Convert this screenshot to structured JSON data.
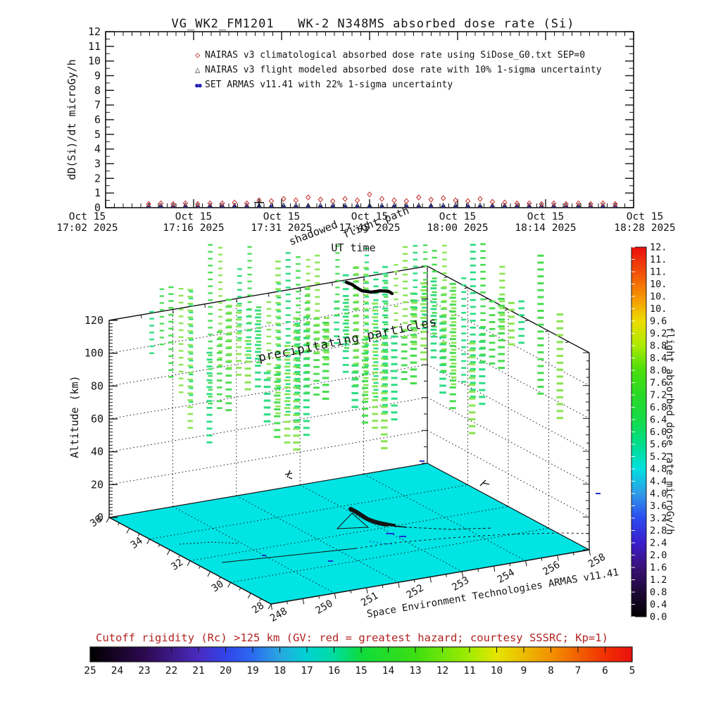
{
  "top_chart": {
    "title": "VG_WK2_FM1201   WK-2 N348MS absorbed dose rate (Si)",
    "ylabel": "dD(Si)/dt microGy/h",
    "xlabel": "UT time",
    "yticks": [
      "0",
      "1",
      "2",
      "3",
      "4",
      "5",
      "6",
      "7",
      "8",
      "9",
      "10",
      "11",
      "12"
    ],
    "xticks": [
      {
        "line1": "Oct 15",
        "line2": "17:02 2025"
      },
      {
        "line1": "Oct 15",
        "line2": "17:16 2025"
      },
      {
        "line1": "Oct 15",
        "line2": "17:31 2025"
      },
      {
        "line1": "Oct 15",
        "line2": "17:45 2025"
      },
      {
        "line1": "Oct 15",
        "line2": "18:00 2025"
      },
      {
        "line1": "Oct 15",
        "line2": "18:14 2025"
      },
      {
        "line1": "Oct 15",
        "line2": "18:28 2025"
      }
    ],
    "legend": [
      {
        "marker": "open-diamond",
        "color": "#C22828",
        "label": "NAIRAS v3 climatological absorbed dose rate using SiDose_G0.txt SEP=0"
      },
      {
        "marker": "open-triangle",
        "color": "#303030",
        "label": "NAIRAS v3 flight modeled absorbed dose rate with 10% 1-sigma uncertainty"
      },
      {
        "marker": "filled-circles",
        "color": "#2222BB",
        "label": "SET ARMAS v11.41 with 22% 1-sigma uncertainty"
      }
    ]
  },
  "scene": {
    "zlabel": "Altitude (km)",
    "z_ticks": [
      "0",
      "20",
      "40",
      "60",
      "80",
      "100",
      "120"
    ],
    "lat_ticks": [
      "36",
      "34",
      "32",
      "30",
      "28"
    ],
    "lon_ticks": [
      "248",
      "250",
      "251",
      "252",
      "253",
      "254",
      "256",
      "258"
    ],
    "floor_color": "#00E4E4",
    "particle_color_palette": [
      "#8CE455",
      "#49DC52",
      "#2EDC85"
    ],
    "flight_path_color": "#000000",
    "annotations": {
      "precipitating": "precipitating particles",
      "flight_path": "flight path",
      "shadowed": "shadowed"
    },
    "credit": "Space Environment Technologies ARMAS v11.41",
    "colorbar": {
      "title": "flight absorbed dose rate microGy/h",
      "min": 0.0,
      "max": 12.0,
      "step": 0.4,
      "tick_labels": [
        "12.",
        "11.",
        "11.",
        "10.",
        "10.",
        "10.",
        "9.6",
        "9.2",
        "8.8",
        "8.4",
        "8.0",
        "7.6",
        "7.2",
        "6.8",
        "6.4",
        "6.0",
        "5.6",
        "5.2",
        "4.8",
        "4.4",
        "4.0",
        "3.6",
        "3.2",
        "2.8",
        "2.4",
        "2.0",
        "1.6",
        "1.2",
        "0.8",
        "0.4",
        "0.0"
      ],
      "gradient": [
        {
          "v": 0.0,
          "c": "#000000"
        },
        {
          "v": 0.8,
          "c": "#1D0836"
        },
        {
          "v": 1.6,
          "c": "#3A1178"
        },
        {
          "v": 2.4,
          "c": "#3A1ECC"
        },
        {
          "v": 3.2,
          "c": "#2B4BF0"
        },
        {
          "v": 4.0,
          "c": "#2E9BE8"
        },
        {
          "v": 4.8,
          "c": "#00E0E0"
        },
        {
          "v": 5.6,
          "c": "#00DE8C"
        },
        {
          "v": 6.4,
          "c": "#16DB48"
        },
        {
          "v": 7.2,
          "c": "#2ADA25"
        },
        {
          "v": 8.0,
          "c": "#4ADE0E"
        },
        {
          "v": 8.8,
          "c": "#ABEB00"
        },
        {
          "v": 9.6,
          "c": "#EEDC00"
        },
        {
          "v": 10.4,
          "c": "#F59200"
        },
        {
          "v": 11.2,
          "c": "#F24E0A"
        },
        {
          "v": 12.0,
          "c": "#EA0E0E"
        }
      ]
    }
  },
  "bottom_bar": {
    "title": "Cutoff rigidity (Rc) >125 km (GV: red = greatest hazard; courtesy SSSRC; Kp=1)",
    "title_color": "#B22222",
    "tick_labels": [
      "25",
      "24",
      "23",
      "22",
      "21",
      "20",
      "19",
      "18",
      "17",
      "16",
      "15",
      "14",
      "13",
      "12",
      "11",
      "10",
      "9",
      "8",
      "7",
      "6",
      "5"
    ],
    "gradient": [
      {
        "v": 25,
        "c": "#000000"
      },
      {
        "v": 23,
        "c": "#2E0850"
      },
      {
        "v": 21,
        "c": "#4A2BBF"
      },
      {
        "v": 20,
        "c": "#3144E8"
      },
      {
        "v": 19,
        "c": "#2B6BF0"
      },
      {
        "v": 18,
        "c": "#28A7E0"
      },
      {
        "v": 17,
        "c": "#00D2D2"
      },
      {
        "v": 16,
        "c": "#00DCA0"
      },
      {
        "v": 15,
        "c": "#0FDB3C"
      },
      {
        "v": 13,
        "c": "#3CDE12"
      },
      {
        "v": 11,
        "c": "#A3EC00"
      },
      {
        "v": 10,
        "c": "#E6E600"
      },
      {
        "v": 8,
        "c": "#F29100"
      },
      {
        "v": 6,
        "c": "#F03000"
      },
      {
        "v": 5,
        "c": "#EB1010"
      }
    ]
  },
  "chart_data": [
    {
      "type": "scatter",
      "title": "VG_WK2_FM1201   WK-2 N348MS absorbed dose rate (Si)",
      "xlabel": "UT time",
      "ylabel": "dD(Si)/dt microGy/h",
      "ylim": [
        0,
        12
      ],
      "x_axis_time_labels": [
        "Oct 15 17:02 2025",
        "Oct 15 17:16 2025",
        "Oct 15 17:31 2025",
        "Oct 15 17:45 2025",
        "Oct 15 18:00 2025",
        "Oct 15 18:14 2025",
        "Oct 15 18:28 2025"
      ],
      "x_minutes_after_1700": [
        9,
        11,
        13,
        15,
        17,
        19,
        21,
        23,
        25,
        27,
        29,
        31,
        33,
        35,
        37,
        39,
        41,
        43,
        45,
        47,
        49,
        51,
        53,
        55,
        57,
        59,
        61,
        63,
        65,
        67,
        69,
        71,
        73,
        75,
        77,
        79,
        81,
        83,
        85
      ],
      "series": [
        {
          "name": "NAIRAS v3 climatological absorbed dose rate using SiDose_G0.txt SEP=0",
          "marker": "diamond",
          "color": "#C22828",
          "values": [
            0.25,
            0.3,
            0.25,
            0.3,
            0.25,
            0.3,
            0.3,
            0.35,
            0.3,
            0.5,
            0.45,
            0.6,
            0.5,
            0.7,
            0.55,
            0.45,
            0.6,
            0.5,
            0.9,
            0.6,
            0.5,
            0.45,
            0.7,
            0.55,
            0.65,
            0.5,
            0.45,
            0.6,
            0.4,
            0.35,
            0.3,
            0.3,
            0.25,
            0.3,
            0.25,
            0.3,
            0.25,
            0.3,
            0.25
          ]
        },
        {
          "name": "NAIRAS v3 flight modeled absorbed dose rate with 10% 1-sigma uncertainty",
          "marker": "triangle",
          "color": "#303030",
          "values": [
            0.15,
            0.15,
            0.15,
            0.15,
            0.15,
            0.15,
            0.15,
            0.15,
            0.15,
            0.15,
            0.15,
            0.15,
            0.15,
            0.15,
            0.15,
            0.15,
            0.15,
            0.15,
            0.15,
            0.15,
            0.15,
            0.15,
            0.15,
            0.15,
            0.15,
            0.15,
            0.15,
            0.15,
            0.15,
            0.15,
            0.15,
            0.15,
            0.15,
            0.15,
            0.15,
            0.15,
            0.15,
            0.15,
            0.15
          ]
        },
        {
          "name": "SET ARMAS v11.41 with 22% 1-sigma uncertainty",
          "marker": "square",
          "color": "#2222BB",
          "values": [
            0.08,
            0.08,
            0.08,
            0.08,
            0.08,
            0.08,
            0.08,
            0.08,
            0.08,
            0.08,
            0.08,
            0.08,
            0.08,
            0.08,
            0.08,
            0.08,
            0.08,
            0.08,
            0.08,
            0.08,
            0.08,
            0.08,
            0.08,
            0.08,
            0.08,
            0.08,
            0.08,
            0.08,
            0.08,
            0.08,
            0.08,
            0.08,
            0.08,
            0.08,
            0.08,
            0.08,
            0.08,
            0.08,
            0.08
          ]
        }
      ],
      "annotations": [
        {
          "marker": "plus",
          "x_minutes_after_1700": 27,
          "value": 0.35
        }
      ]
    },
    {
      "type": "3d-scene",
      "zlabel": "Altitude (km)",
      "zlim": [
        0,
        120
      ],
      "lon_range": [
        248,
        258
      ],
      "lat_range": [
        28,
        36
      ],
      "floor": "cutoff rigidity surface, uniform cyan (~16-17 GV)",
      "content": [
        "precipitating particles columns above ~60-170 km",
        "aircraft flight path near top of volume",
        "flight path shadow on ground surface"
      ]
    }
  ]
}
